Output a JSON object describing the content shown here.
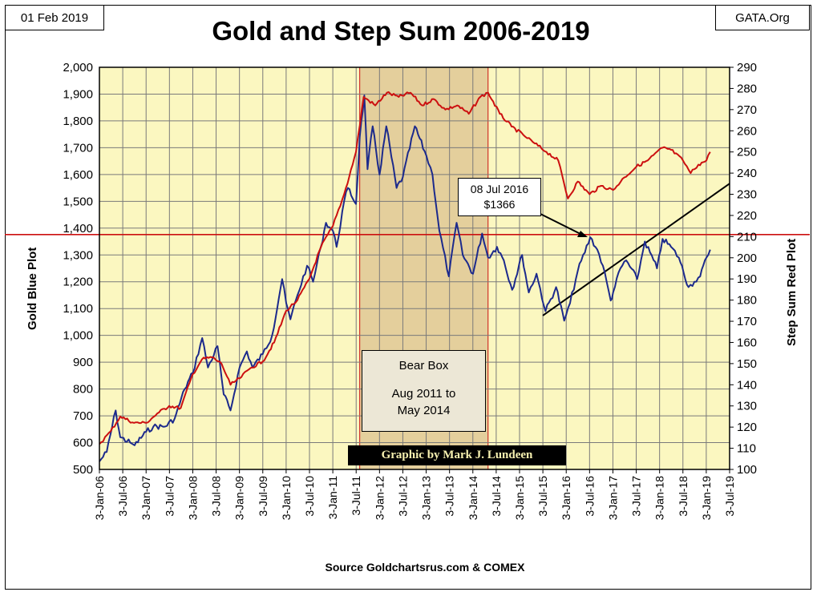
{
  "header": {
    "date": "01 Feb 2019",
    "site": "GATA.Org"
  },
  "footer": {
    "source": "Source Goldchartsrus.com & COMEX",
    "credit": "Graphic by Mark J. Lundeen"
  },
  "annotations": {
    "bear_box_title": "Bear Box",
    "bear_box_range": "Aug 2011 to May 2014",
    "callout_date": "08 Jul 2016",
    "callout_price": "$1366"
  },
  "colors": {
    "plot_background": "#fbf7c0",
    "gold_line": "#1c2a8c",
    "step_sum_line": "#cc1010",
    "bear_box_fill": "#e4cf9c",
    "reference_line": "#cc1010"
  },
  "chart_data": {
    "type": "line",
    "title": "Gold and Step Sum 2006-2019",
    "ylabel_left": "Gold   Blue Plot",
    "ylabel_right": "Step Sum    Red Plot",
    "ylim_left": [
      500,
      2000
    ],
    "ylim_right": [
      100,
      290
    ],
    "yticks_left": [
      "500",
      "600",
      "700",
      "800",
      "900",
      "1,000",
      "1,100",
      "1,200",
      "1,300",
      "1,400",
      "1,500",
      "1,600",
      "1,700",
      "1,800",
      "1,900",
      "2,000"
    ],
    "yticks_right": [
      "100",
      "110",
      "120",
      "130",
      "140",
      "150",
      "160",
      "170",
      "180",
      "190",
      "200",
      "210",
      "220",
      "230",
      "240",
      "250",
      "260",
      "270",
      "280",
      "290"
    ],
    "xticks": [
      "3-Jan-06",
      "3-Jul-06",
      "3-Jan-07",
      "3-Jul-07",
      "3-Jan-08",
      "3-Jul-08",
      "3-Jan-09",
      "3-Jul-09",
      "3-Jan-10",
      "3-Jul-10",
      "3-Jan-11",
      "3-Jul-11",
      "3-Jan-12",
      "3-Jul-12",
      "3-Jan-13",
      "3-Jul-13",
      "3-Jan-14",
      "3-Jul-14",
      "3-Jan-15",
      "3-Jul-15",
      "3-Jan-16",
      "3-Jul-16",
      "3-Jan-17",
      "3-Jul-17",
      "3-Jan-18",
      "3-Jul-18",
      "3-Jan-19",
      "3-Jul-19"
    ],
    "xlim": [
      "2006-01-03",
      "2019-07-03"
    ],
    "grid": true,
    "bear_box": [
      "2011-08-01",
      "2014-05-01"
    ],
    "reference_line_gold": 1376,
    "trendline_gold": [
      {
        "x": "2015-07-03",
        "y": 1325
      },
      {
        "x": "2019-07-03",
        "y": 1375
      }
    ],
    "series": [
      {
        "name": "Gold",
        "axis": "left",
        "x": [
          "2006-01-03",
          "2006-03-01",
          "2006-05-10",
          "2006-06-15",
          "2006-09-01",
          "2006-10-05",
          "2007-01-03",
          "2007-03-01",
          "2007-06-01",
          "2007-08-15",
          "2007-11-01",
          "2008-01-03",
          "2008-03-17",
          "2008-05-01",
          "2008-07-15",
          "2008-09-01",
          "2008-10-24",
          "2009-01-03",
          "2009-03-01",
          "2009-04-15",
          "2009-07-03",
          "2009-09-15",
          "2009-12-02",
          "2010-01-03",
          "2010-02-05",
          "2010-04-01",
          "2010-06-15",
          "2010-08-01",
          "2010-10-01",
          "2010-11-10",
          "2011-01-03",
          "2011-02-01",
          "2011-04-01",
          "2011-05-01",
          "2011-07-03",
          "2011-08-01",
          "2011-09-06",
          "2011-10-01",
          "2011-11-10",
          "2012-01-03",
          "2012-02-25",
          "2012-05-15",
          "2012-07-03",
          "2012-10-05",
          "2013-01-03",
          "2013-02-20",
          "2013-04-15",
          "2013-06-28",
          "2013-08-28",
          "2013-10-15",
          "2014-01-03",
          "2014-03-15",
          "2014-05-01",
          "2014-07-10",
          "2014-09-01",
          "2014-11-05",
          "2015-01-22",
          "2015-03-15",
          "2015-05-15",
          "2015-07-24",
          "2015-10-15",
          "2015-12-17",
          "2016-02-01",
          "2016-04-01",
          "2016-07-08",
          "2016-09-01",
          "2016-10-15",
          "2016-12-15",
          "2017-01-03",
          "2017-03-01",
          "2017-04-15",
          "2017-07-10",
          "2017-09-08",
          "2017-12-12",
          "2018-01-25",
          "2018-04-01",
          "2018-06-01",
          "2018-08-16",
          "2018-10-01",
          "2018-11-15",
          "2019-01-03",
          "2019-02-01"
        ],
        "values": [
          530,
          565,
          720,
          620,
          600,
          590,
          640,
          660,
          660,
          690,
          800,
          860,
          990,
          880,
          960,
          780,
          720,
          880,
          940,
          880,
          930,
          1000,
          1210,
          1120,
          1060,
          1150,
          1260,
          1200,
          1330,
          1420,
          1390,
          1330,
          1500,
          1550,
          1490,
          1740,
          1895,
          1620,
          1780,
          1600,
          1780,
          1550,
          1590,
          1780,
          1670,
          1600,
          1390,
          1220,
          1420,
          1300,
          1230,
          1380,
          1290,
          1330,
          1280,
          1170,
          1300,
          1160,
          1230,
          1090,
          1180,
          1055,
          1120,
          1240,
          1366,
          1320,
          1260,
          1130,
          1160,
          1250,
          1280,
          1210,
          1350,
          1250,
          1360,
          1330,
          1290,
          1180,
          1200,
          1220,
          1290,
          1320
        ]
      },
      {
        "name": "Step Sum",
        "axis": "right",
        "x": [
          "2006-01-03",
          "2006-04-01",
          "2006-06-15",
          "2006-10-01",
          "2007-01-03",
          "2007-04-15",
          "2007-07-03",
          "2007-10-01",
          "2008-01-03",
          "2008-03-15",
          "2008-06-01",
          "2008-08-15",
          "2008-10-24",
          "2009-01-03",
          "2009-04-01",
          "2009-07-03",
          "2009-10-01",
          "2010-01-03",
          "2010-04-01",
          "2010-07-03",
          "2010-10-01",
          "2011-01-03",
          "2011-04-01",
          "2011-07-03",
          "2011-09-01",
          "2011-12-01",
          "2012-03-01",
          "2012-06-01",
          "2012-09-01",
          "2012-12-01",
          "2013-03-01",
          "2013-06-01",
          "2013-09-01",
          "2013-12-01",
          "2014-03-01",
          "2014-05-01",
          "2014-08-01",
          "2014-11-01",
          "2015-02-01",
          "2015-05-01",
          "2015-08-01",
          "2015-11-01",
          "2016-01-15",
          "2016-04-01",
          "2016-07-03",
          "2016-10-01",
          "2017-01-03",
          "2017-04-01",
          "2017-07-03",
          "2017-10-01",
          "2018-01-25",
          "2018-04-01",
          "2018-07-03",
          "2018-09-01",
          "2018-11-01",
          "2019-01-03",
          "2019-02-01"
        ],
        "values": [
          112,
          118,
          125,
          122,
          122,
          127,
          130,
          129,
          145,
          152,
          153,
          150,
          140,
          143,
          148,
          151,
          160,
          175,
          180,
          190,
          205,
          215,
          230,
          250,
          276,
          272,
          278,
          276,
          278,
          272,
          275,
          270,
          272,
          268,
          276,
          278,
          268,
          262,
          258,
          254,
          250,
          246,
          228,
          236,
          230,
          234,
          232,
          238,
          243,
          246,
          252,
          251,
          246,
          240,
          244,
          246,
          250
        ]
      }
    ]
  }
}
